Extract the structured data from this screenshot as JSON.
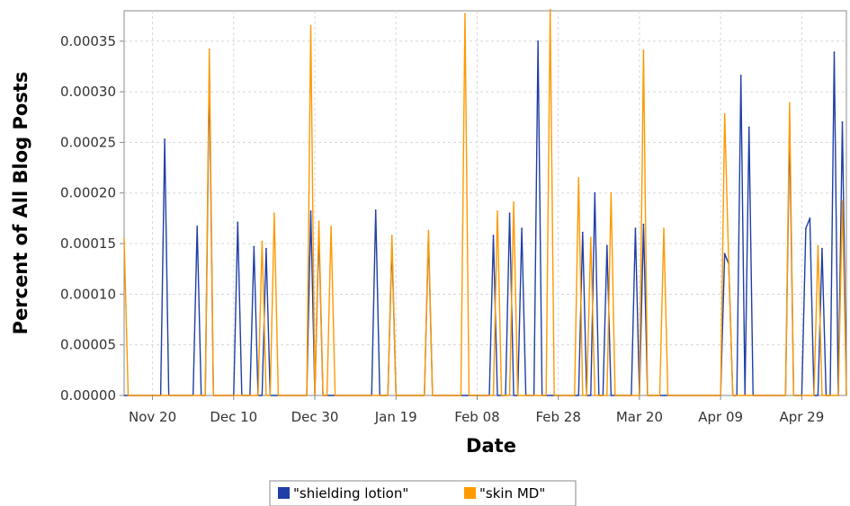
{
  "chart_data": {
    "type": "line",
    "title": "",
    "xlabel": "Date",
    "ylabel": "Percent of All Blog Posts",
    "x_start": "Nov 13",
    "x_end": "May 10",
    "x_ticks": [
      "Nov 20",
      "Dec 10",
      "Dec 30",
      "Jan 19",
      "Feb 08",
      "Feb 28",
      "Mar 20",
      "Apr 09",
      "Apr 29"
    ],
    "x_tick_dates": [
      "Nov 20",
      "Dec 10",
      "Dec 30",
      "Jan 19",
      "Feb 08",
      "Feb 28",
      "Mar 20",
      "Apr 09",
      "Apr 29"
    ],
    "ylim": [
      0,
      0.00038
    ],
    "y_ticks": [
      "0.00000",
      "0.00005",
      "0.00010",
      "0.00015",
      "0.00020",
      "0.00025",
      "0.00030",
      "0.00035"
    ],
    "y_tick_values": [
      0,
      5e-05,
      0.0001,
      0.00015,
      0.0002,
      0.00025,
      0.0003,
      0.00035
    ],
    "grid": true,
    "legend_position": "bottom",
    "series": [
      {
        "name": "\"shielding lotion\"",
        "color": "#1f3fa6",
        "points": [
          [
            "Nov 23",
            0.000253
          ],
          [
            "Dec 01",
            0.000167
          ],
          [
            "Dec 04",
            0.00032
          ],
          [
            "Dec 11",
            0.000171
          ],
          [
            "Dec 15",
            0.000147
          ],
          [
            "Dec 18",
            0.000145
          ],
          [
            "Dec 29",
            0.000182
          ],
          [
            "Dec 31",
            0.000162
          ],
          [
            "Jan 14",
            0.000183
          ],
          [
            "Jan 18",
            0.00015
          ],
          [
            "Jan 27",
            0.000158
          ],
          [
            "Feb 12",
            0.000158
          ],
          [
            "Feb 16",
            0.00018
          ],
          [
            "Feb 19",
            0.000165
          ],
          [
            "Feb 23",
            0.00035
          ],
          [
            "Mar 06",
            0.000161
          ],
          [
            "Mar 09",
            0.0002
          ],
          [
            "Mar 12",
            0.000148
          ],
          [
            "Mar 19",
            0.000165
          ],
          [
            "Mar 21",
            0.000169
          ],
          [
            "Apr 10",
            0.00014
          ],
          [
            "Apr 11",
            0.00013
          ],
          [
            "Apr 14",
            0.000316
          ],
          [
            "Apr 16",
            0.000265
          ],
          [
            "Apr 26",
            0.000265
          ],
          [
            "Apr 30",
            0.000165
          ],
          [
            "May 01",
            0.000175
          ],
          [
            "May 04",
            0.000145
          ],
          [
            "May 07",
            0.000339
          ],
          [
            "May 09",
            0.00027
          ]
        ]
      },
      {
        "name": "\"skin MD\"",
        "color": "#ff9900",
        "points": [
          [
            "Nov 13",
            0.000155
          ],
          [
            "Dec 04",
            0.000342
          ],
          [
            "Dec 17",
            0.000152
          ],
          [
            "Dec 20",
            0.00018
          ],
          [
            "Dec 29",
            0.000365
          ],
          [
            "Dec 31",
            0.000172
          ],
          [
            "Jan 03",
            0.000167
          ],
          [
            "Jan 18",
            0.000158
          ],
          [
            "Jan 27",
            0.000163
          ],
          [
            "Feb 05",
            0.000377
          ],
          [
            "Feb 13",
            0.000182
          ],
          [
            "Feb 17",
            0.000191
          ],
          [
            "Feb 26",
            0.000381
          ],
          [
            "Mar 05",
            0.000215
          ],
          [
            "Mar 08",
            0.000156
          ],
          [
            "Mar 13",
            0.0002
          ],
          [
            "Mar 21",
            0.000341
          ],
          [
            "Mar 26",
            0.000165
          ],
          [
            "Apr 10",
            0.000278
          ],
          [
            "Apr 11",
            0.00013
          ],
          [
            "Apr 26",
            0.000289
          ],
          [
            "May 03",
            0.000148
          ],
          [
            "May 09",
            0.000192
          ]
        ]
      }
    ]
  }
}
